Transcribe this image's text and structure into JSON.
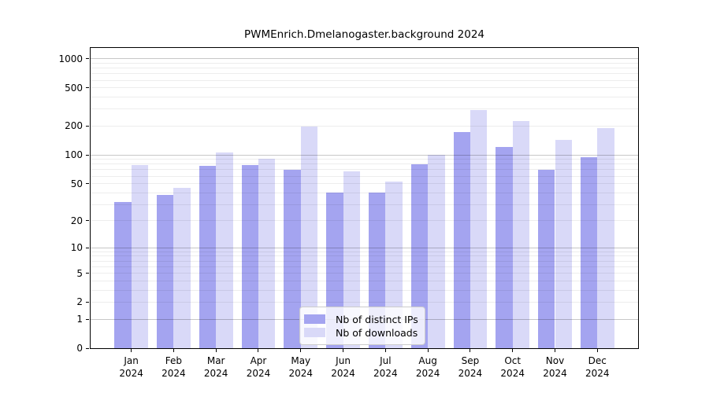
{
  "chart_data": {
    "type": "bar",
    "title": "PWMEnrich.Dmelanogaster.background 2024",
    "categories": [
      "Jan",
      "Feb",
      "Mar",
      "Apr",
      "May",
      "Jun",
      "Jul",
      "Aug",
      "Sep",
      "Oct",
      "Nov",
      "Dec"
    ],
    "category_year": "2024",
    "series": [
      {
        "name": "Nb of distinct IPs",
        "color": "#a4a4f0",
        "values": [
          32,
          38,
          77,
          79,
          70,
          40,
          40,
          80,
          174,
          122,
          70,
          94
        ]
      },
      {
        "name": "Nb of downloads",
        "color": "#d9d9f8",
        "values": [
          78,
          45,
          106,
          92,
          197,
          67,
          53,
          100,
          296,
          227,
          143,
          191
        ]
      }
    ],
    "xlabel": "",
    "ylabel": "",
    "yticks": [
      0,
      1,
      2,
      5,
      10,
      20,
      50,
      100,
      200,
      500,
      1000
    ],
    "minor_gridline_values": [
      2,
      3,
      4,
      5,
      6,
      7,
      8,
      9,
      20,
      30,
      40,
      50,
      60,
      70,
      80,
      90,
      200,
      300,
      400,
      500,
      600,
      700,
      800,
      900
    ],
    "major_gridline_values": [
      1,
      10,
      100,
      1000
    ],
    "scale": "log1p",
    "ylim": [
      0,
      1300
    ],
    "grid": true,
    "legend_position": "lower center"
  }
}
